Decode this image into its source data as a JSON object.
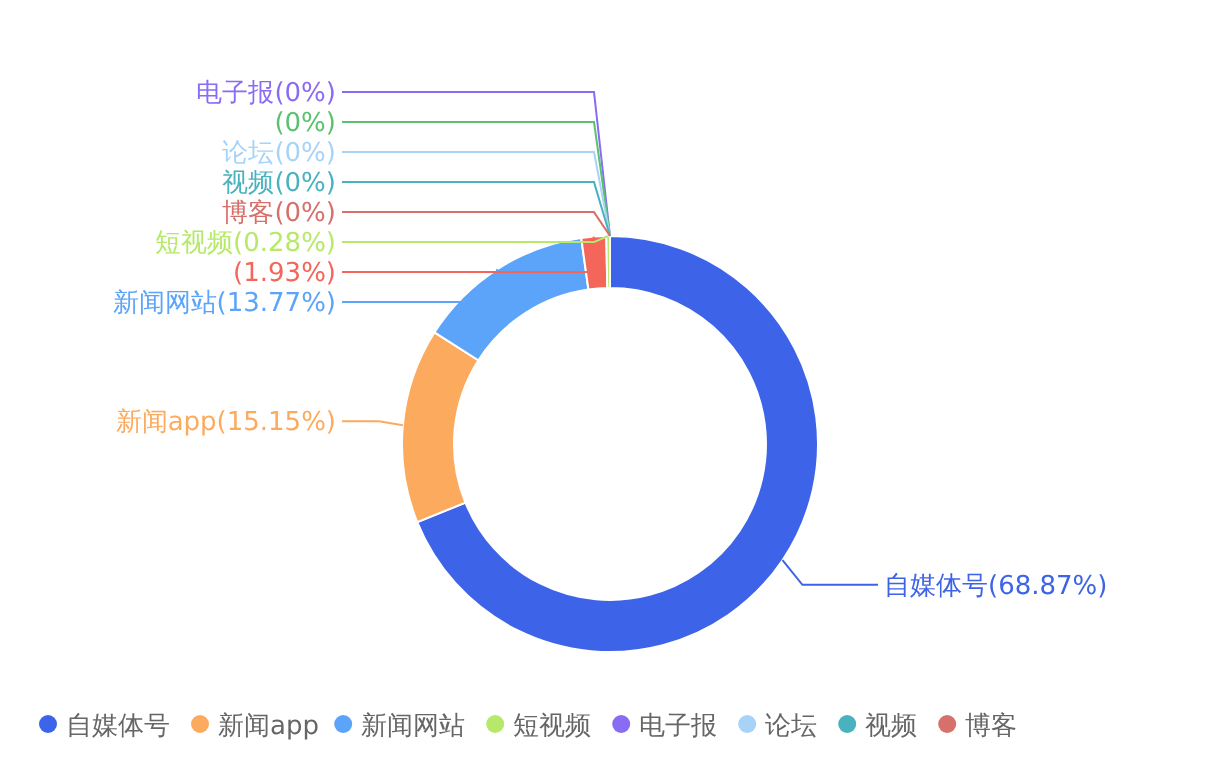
{
  "chart_data": {
    "type": "donut",
    "categories": [
      "自媒体号",
      "新闻app",
      "新闻网站",
      null,
      "短视频",
      "电子报",
      null,
      "论坛",
      "视频",
      "博客"
    ],
    "values": [
      68.87,
      15.15,
      13.77,
      1.93,
      0.28,
      0,
      0,
      0,
      0,
      0
    ],
    "value_labels": [
      "(68.87%)",
      "(15.15%)",
      "(13.77%)",
      "(1.93%)",
      "(0.28%)",
      "(0%)",
      "(0%)",
      "(0%)",
      "(0%)",
      "(0%)"
    ],
    "colors": [
      "#3d64e8",
      "#fcab5e",
      "#5ba4f9",
      "#f4665a",
      "#b6e96a",
      "#8a6cf4",
      "#5ac26e",
      "#a7d3f9",
      "#4ab2be",
      "#d5706a"
    ],
    "legend": "bottom"
  }
}
